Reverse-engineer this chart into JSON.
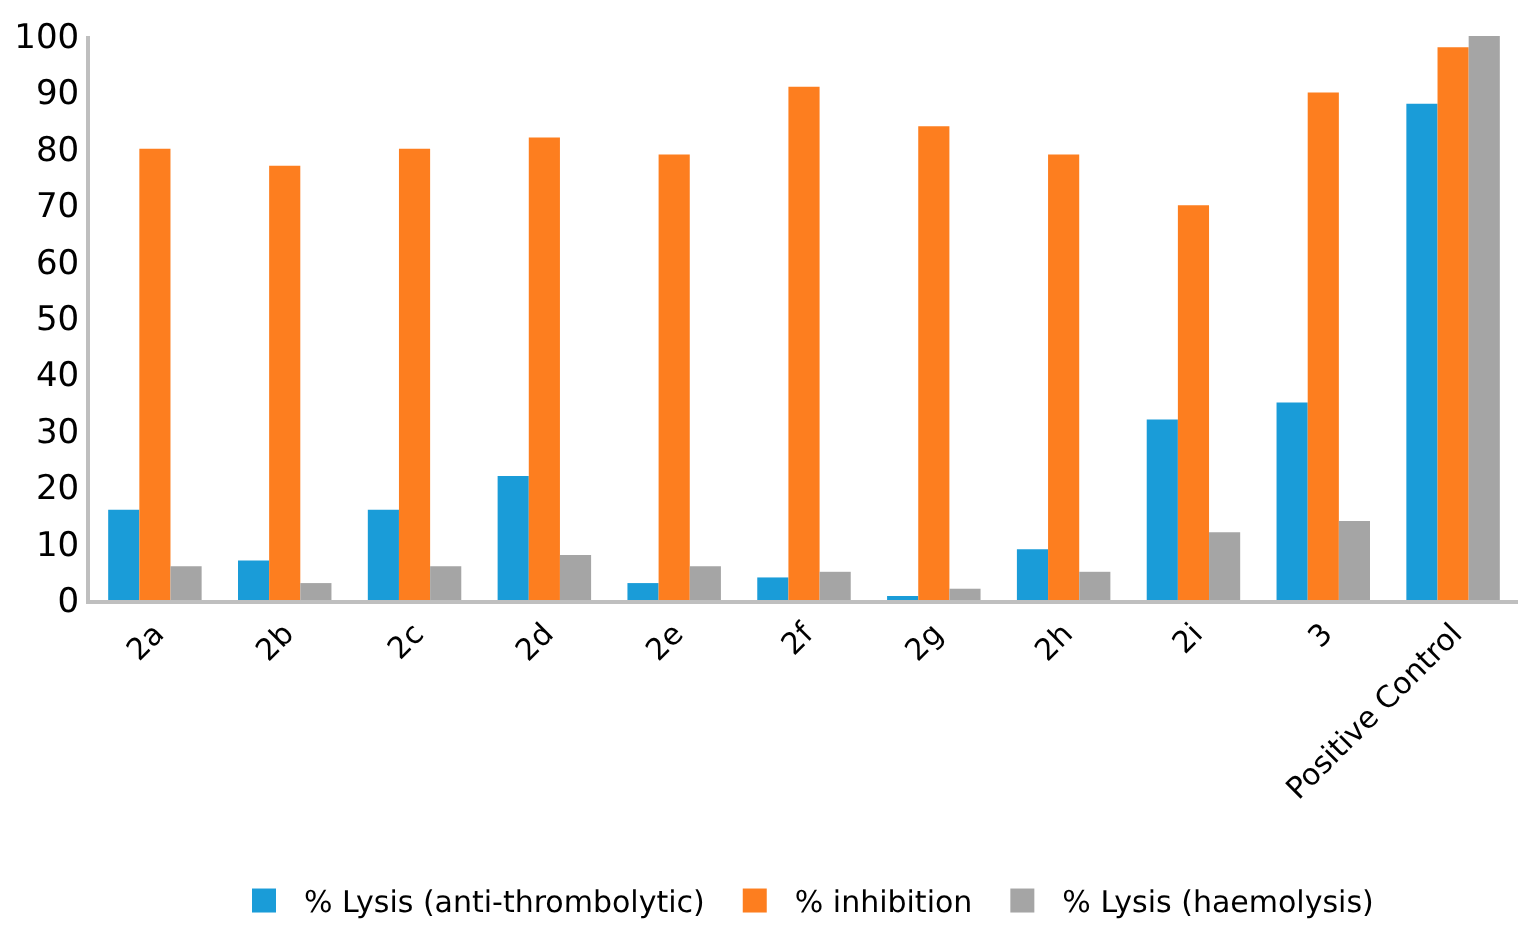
{
  "chart_data": {
    "type": "bar",
    "categories": [
      "2a",
      "2b",
      "2c",
      "2d",
      "2e",
      "2f",
      "2g",
      "2h",
      "2i",
      "3",
      "Positive Control"
    ],
    "series": [
      {
        "name": "% Lysis (anti-thrombolytic)",
        "color": "#1a9cd8",
        "values": [
          16,
          7,
          16,
          22,
          3,
          4,
          0.5,
          9,
          32,
          35,
          88
        ]
      },
      {
        "name": "% inhibition",
        "color": "#fd7e1f",
        "values": [
          80,
          77,
          80,
          82,
          79,
          91,
          84,
          79,
          70,
          90,
          98
        ]
      },
      {
        "name": "% Lysis (haemolysis)",
        "color": "#a5a5a5",
        "values": [
          6,
          3,
          6,
          8,
          6,
          5,
          2,
          5,
          12,
          14,
          100
        ]
      }
    ],
    "ylim": [
      0,
      100
    ],
    "yticks": [
      0,
      10,
      20,
      30,
      40,
      50,
      60,
      70,
      80,
      90,
      100
    ],
    "grid": false,
    "legend": "bottom"
  }
}
